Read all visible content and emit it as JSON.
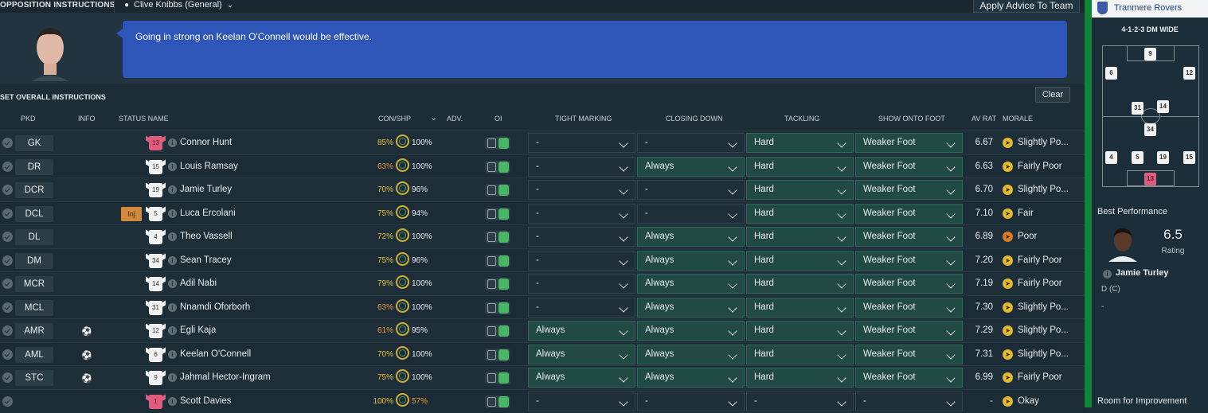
{
  "header": {
    "title": "OPPOSITION INSTRUCTIONS",
    "coach": "Clive Knibbs (General)",
    "apply_button": "Apply Advice To Team"
  },
  "advice": {
    "text": "Going in strong on Keelan O'Connell would be effective."
  },
  "instructions": {
    "label": "SET OVERALL INSTRUCTIONS",
    "clear_button": "Clear"
  },
  "columns": {
    "pkd": "PKD",
    "info": "INFO",
    "status_name": "STATUS NAME",
    "con_shp": "CON/SHP",
    "adv": "ADV.",
    "oi": "OI",
    "tight_marking": "TIGHT MARKING",
    "closing_down": "CLOSING DOWN",
    "tackling": "TACKLING",
    "show_onto_foot": "SHOW ONTO FOOT",
    "av_rat": "AV RAT",
    "morale": "MORALE"
  },
  "players": [
    {
      "pos": "GK",
      "num": "13",
      "name": "Connor Hunt",
      "con": "85%",
      "shp": "100%",
      "tight": "-",
      "closing": "-",
      "tackling": "Hard",
      "foot": "Weaker Foot",
      "avrat": "6.67",
      "morale": "Slightly Po..."
    },
    {
      "pos": "DR",
      "num": "15",
      "name": "Louis Ramsay",
      "con": "63%",
      "shp": "100%",
      "tight": "-",
      "closing": "Always",
      "tackling": "Hard",
      "foot": "Weaker Foot",
      "avrat": "6.63",
      "morale": "Fairly Poor"
    },
    {
      "pos": "DCR",
      "num": "19",
      "name": "Jamie Turley",
      "con": "70%",
      "shp": "96%",
      "tight": "-",
      "closing": "-",
      "tackling": "Hard",
      "foot": "Weaker Foot",
      "avrat": "6.70",
      "morale": "Slightly Po..."
    },
    {
      "pos": "DCL",
      "num": "5",
      "name": "Luca Ercolani",
      "con": "75%",
      "shp": "94%",
      "tight": "-",
      "closing": "-",
      "tackling": "Hard",
      "foot": "Weaker Foot",
      "avrat": "7.10",
      "morale": "Fair",
      "status": "Inj"
    },
    {
      "pos": "DL",
      "num": "4",
      "name": "Theo Vassell",
      "con": "72%",
      "shp": "100%",
      "tight": "-",
      "closing": "Always",
      "tackling": "Hard",
      "foot": "Weaker Foot",
      "avrat": "6.89",
      "morale": "Poor"
    },
    {
      "pos": "DM",
      "num": "34",
      "name": "Sean Tracey",
      "con": "75%",
      "shp": "96%",
      "tight": "-",
      "closing": "Always",
      "tackling": "Hard",
      "foot": "Weaker Foot",
      "avrat": "7.20",
      "morale": "Fairly Poor"
    },
    {
      "pos": "MCR",
      "num": "14",
      "name": "Adil Nabi",
      "con": "79%",
      "shp": "100%",
      "tight": "-",
      "closing": "Always",
      "tackling": "Hard",
      "foot": "Weaker Foot",
      "avrat": "7.19",
      "morale": "Fairly Poor"
    },
    {
      "pos": "MCL",
      "num": "31",
      "name": "Nnamdi Oforborh",
      "con": "63%",
      "shp": "100%",
      "tight": "-",
      "closing": "Always",
      "tackling": "Hard",
      "foot": "Weaker Foot",
      "avrat": "7.30",
      "morale": "Slightly Po..."
    },
    {
      "pos": "AMR",
      "num": "12",
      "name": "Egli Kaja",
      "con": "61%",
      "shp": "95%",
      "tight": "Always",
      "closing": "Always",
      "tackling": "Hard",
      "foot": "Weaker Foot",
      "avrat": "7.29",
      "morale": "Slightly Po..."
    },
    {
      "pos": "AML",
      "num": "6",
      "name": "Keelan O'Connell",
      "con": "70%",
      "shp": "100%",
      "tight": "Always",
      "closing": "Always",
      "tackling": "Hard",
      "foot": "Weaker Foot",
      "avrat": "7.31",
      "morale": "Slightly Po..."
    },
    {
      "pos": "STC",
      "num": "9",
      "name": "Jahmal Hector-Ingram",
      "con": "75%",
      "shp": "100%",
      "tight": "Always",
      "closing": "Always",
      "tackling": "Hard",
      "foot": "Weaker Foot",
      "avrat": "6.99",
      "morale": "Fairly Poor"
    },
    {
      "pos": "",
      "num": "1",
      "name": "Scott Davies",
      "con": "100%",
      "shp": "57%",
      "tight": "-",
      "closing": "-",
      "tackling": "-",
      "foot": "-",
      "avrat": "-",
      "morale": "Okay"
    }
  ],
  "sidebar": {
    "team": "Tranmere Rovers",
    "formation": "4-1-2-3 DM WIDE",
    "pitch_numbers": [
      "9",
      "6",
      "12",
      "31",
      "14",
      "34",
      "4",
      "5",
      "19",
      "15",
      "13"
    ],
    "best_performance_title": "Best Performance",
    "rating": "6.5",
    "rating_label": "Rating",
    "player": "Jamie Turley",
    "position": "D (C)",
    "dash": "-",
    "room_title": "Room for Improvement"
  }
}
